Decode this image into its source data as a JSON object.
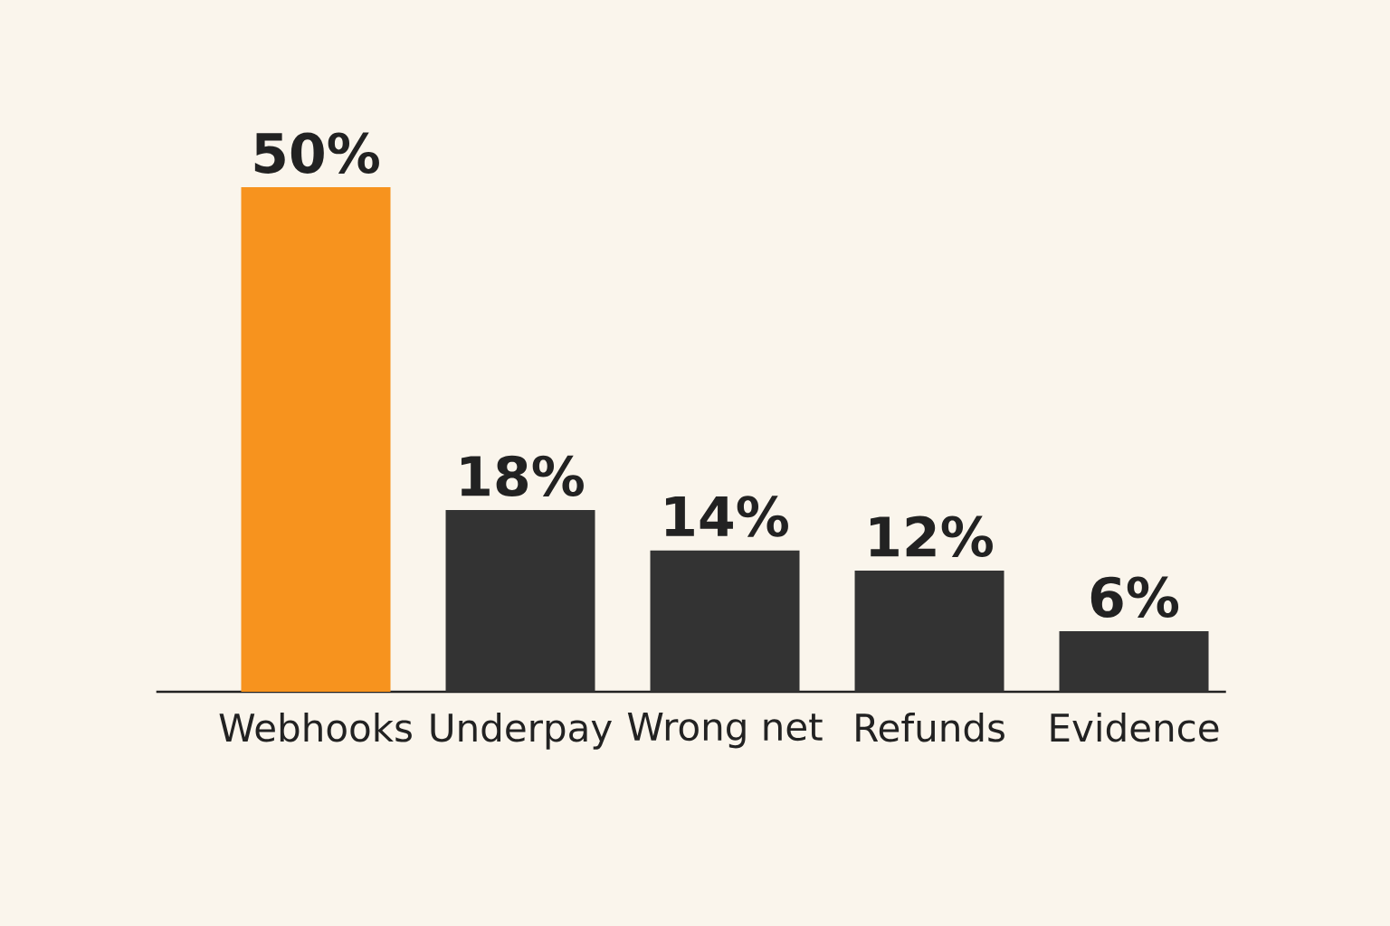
{
  "chart_data": {
    "type": "bar",
    "categories": [
      "Webhooks",
      "Underpay",
      "Wrong net",
      "Refunds",
      "Evidence"
    ],
    "values": [
      50,
      18,
      14,
      12,
      6
    ],
    "value_labels": [
      "50%",
      "18%",
      "14%",
      "12%",
      "6%"
    ],
    "colors": [
      "#f7931e",
      "#333333",
      "#333333",
      "#333333",
      "#333333"
    ],
    "tick_labels": "x"
  }
}
